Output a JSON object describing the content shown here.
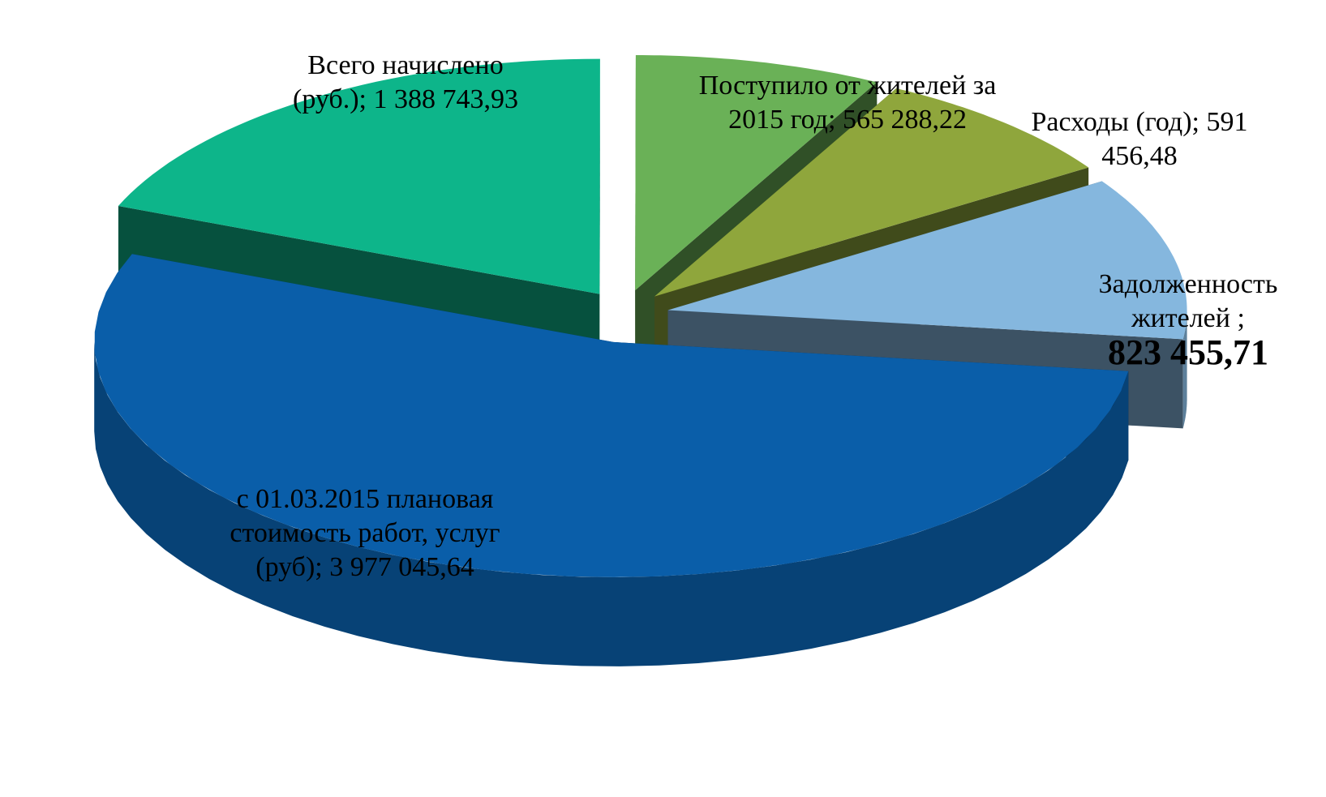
{
  "chart_data": {
    "type": "pie3d",
    "categories": [
      "Всего начислено (руб.);",
      "Поступило от жителей за 2015 год;",
      "Расходы (год);",
      "Задолженность жителей ;",
      "с 01.03.2015 плановая стоимость работ, услуг (руб);"
    ],
    "values": [
      1388743.93,
      565288.22,
      591456.48,
      823455.71,
      3977045.64
    ],
    "value_labels": [
      "1 388 743,93",
      "565 288,22",
      "591 456,48",
      "823 455,71",
      "3 977 045,64"
    ],
    "colors": [
      "#0db58a",
      "#6ab157",
      "#8fa63c",
      "#85b7de",
      "#0a5ea9"
    ]
  }
}
